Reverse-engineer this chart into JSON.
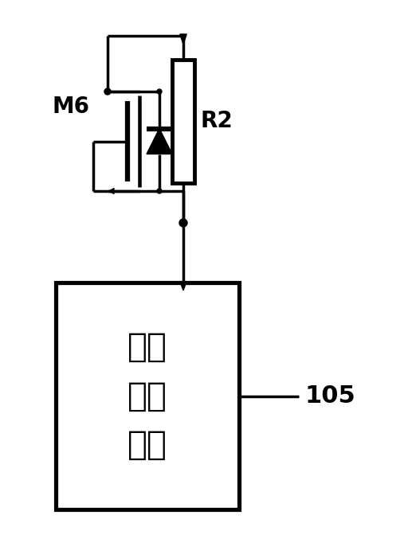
{
  "bg_color": "#ffffff",
  "line_color": "#000000",
  "line_width": 2.5,
  "fig_width": 5.12,
  "fig_height": 6.96,
  "box_label": "第二\n稳压\n单元",
  "box_label_105": "105",
  "resistor_label": "R2",
  "mosfet_label": "M6"
}
